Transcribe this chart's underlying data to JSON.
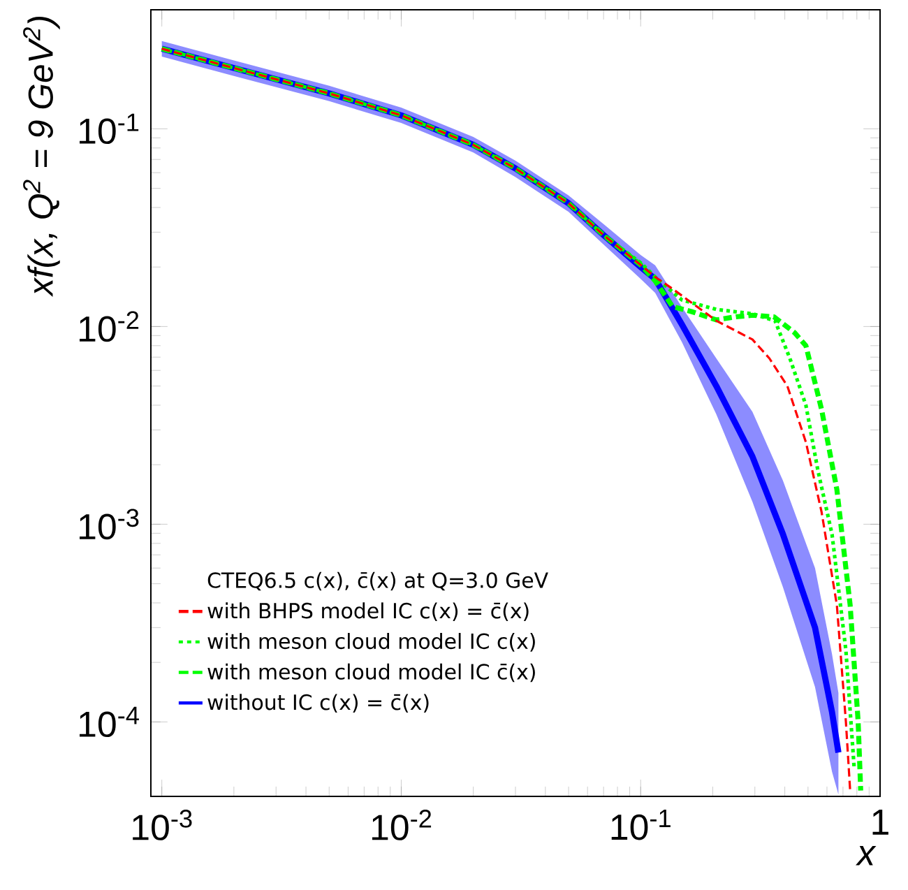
{
  "chart_data": {
    "type": "line",
    "log": "xy",
    "xlabel": "x",
    "ylabel": "xf(x,  Q$^{2}$ = 9 GeV$^{2}$)",
    "legend_title": "CTEQ6.5 c(x), c̄(x) at Q=3.0 GeV",
    "legend": "bottom left",
    "xlim": [
      0.0009,
      1
    ],
    "ylim": [
      4.2e-05,
      0.4
    ],
    "xticks": [
      {
        "value": 0.001,
        "label": "10$^{-3}$"
      },
      {
        "value": 0.01,
        "label": "10$^{-2}$"
      },
      {
        "value": 0.1,
        "label": "10$^{-1}$"
      },
      1
    ],
    "yticks": [
      {
        "value": 0.0001,
        "label": "10$^{-4}$"
      },
      {
        "value": 0.001,
        "label": "10$^{-3}$"
      },
      {
        "value": 0.01,
        "label": "10$^{-2}$"
      },
      {
        "value": 0.1,
        "label": "10$^{-1}$"
      }
    ],
    "series": [
      {
        "name": "with BHPS model IC c(x) = c̄(x)",
        "color": "#ff0000",
        "line_style": "dashed",
        "x": [
          0.001,
          0.002,
          0.005,
          0.01,
          0.02,
          0.03,
          0.05,
          0.07,
          0.1,
          0.115,
          0.136,
          0.207,
          0.293,
          0.345,
          0.41,
          0.49,
          0.57,
          0.66,
          0.72,
          0.75
        ],
        "values": [
          0.254,
          0.203,
          0.151,
          0.117,
          0.083,
          0.063,
          0.042,
          0.029,
          0.0205,
          0.0178,
          0.0155,
          0.0107,
          0.0086,
          0.0069,
          0.005,
          0.0026,
          0.00115,
          0.00039,
          0.0001,
          4.5e-05
        ]
      },
      {
        "name": "with meson cloud model IC c(x)",
        "color": "#00ff00",
        "line_style": "dotted",
        "x": [
          0.001,
          0.002,
          0.005,
          0.01,
          0.02,
          0.03,
          0.05,
          0.07,
          0.1,
          0.115,
          0.149,
          0.207,
          0.293,
          0.364,
          0.42,
          0.49,
          0.55,
          0.63,
          0.72,
          0.78
        ],
        "values": [
          0.254,
          0.203,
          0.151,
          0.117,
          0.083,
          0.063,
          0.042,
          0.029,
          0.021,
          0.0178,
          0.0136,
          0.0122,
          0.0116,
          0.0107,
          0.0069,
          0.004,
          0.00187,
          0.00089,
          0.00023,
          5.8e-05
        ]
      },
      {
        "name": "with meson cloud model IC c̄(x)",
        "color": "#00ff00",
        "line_style": "dashed",
        "x": [
          0.001,
          0.002,
          0.005,
          0.01,
          0.02,
          0.03,
          0.05,
          0.07,
          0.1,
          0.115,
          0.136,
          0.163,
          0.207,
          0.25,
          0.293,
          0.36,
          0.44,
          0.49,
          0.57,
          0.66,
          0.75,
          0.81,
          0.83
        ],
        "values": [
          0.254,
          0.203,
          0.151,
          0.117,
          0.083,
          0.063,
          0.042,
          0.029,
          0.0205,
          0.017,
          0.0126,
          0.0119,
          0.0108,
          0.0112,
          0.0114,
          0.0112,
          0.0093,
          0.008,
          0.0038,
          0.0015,
          0.00039,
          0.0001,
          4.5e-05
        ]
      },
      {
        "name": "without IC c(x) = c̄(x)",
        "color": "#0000ff",
        "line_style": "solid",
        "x": [
          0.001,
          0.002,
          0.005,
          0.01,
          0.02,
          0.03,
          0.05,
          0.07,
          0.1,
          0.115,
          0.149,
          0.207,
          0.293,
          0.393,
          0.535,
          0.63,
          0.67
        ],
        "values": [
          0.254,
          0.203,
          0.151,
          0.117,
          0.083,
          0.063,
          0.042,
          0.029,
          0.02,
          0.0174,
          0.0102,
          0.005,
          0.0022,
          0.00089,
          0.0003,
          0.000112,
          7e-05
        ],
        "lower": [
          0.232,
          0.185,
          0.138,
          0.107,
          0.076,
          0.057,
          0.038,
          0.026,
          0.0174,
          0.0148,
          0.0083,
          0.0036,
          0.0013,
          0.00048,
          0.00015,
          5.6e-05,
          4.3e-05
        ],
        "upper": [
          0.278,
          0.222,
          0.165,
          0.128,
          0.091,
          0.069,
          0.046,
          0.033,
          0.023,
          0.0204,
          0.0125,
          0.0069,
          0.0037,
          0.00166,
          0.0006,
          0.00022,
          0.00014
        ]
      }
    ]
  }
}
